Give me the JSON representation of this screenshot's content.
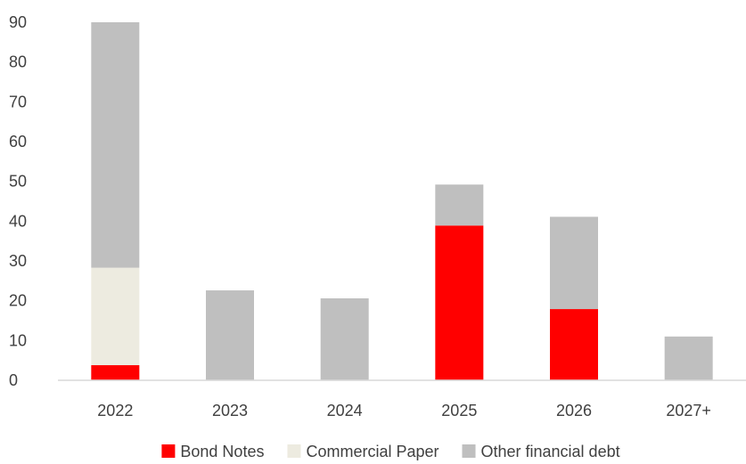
{
  "chart_data": {
    "type": "bar",
    "stacked": true,
    "categories": [
      "2022",
      "2023",
      "2024",
      "2025",
      "2026",
      "2027+"
    ],
    "series": [
      {
        "name": "Bond Notes",
        "color": "#ff0000",
        "values": [
          3.8,
          0,
          0,
          38.9,
          17.9,
          0
        ]
      },
      {
        "name": "Commercial Paper",
        "color": "#edebe0",
        "values": [
          24.5,
          0,
          0,
          0,
          0,
          0
        ]
      },
      {
        "name": "Other financial debt",
        "color": "#bfbfbf",
        "values": [
          61.7,
          22.6,
          20.6,
          10.3,
          23.2,
          11.0
        ]
      }
    ],
    "ylim": [
      0,
      90
    ],
    "yticks": [
      "0",
      "10",
      "20",
      "30",
      "40",
      "50",
      "60",
      "70",
      "80",
      "90"
    ],
    "grid": false,
    "legend_position": "bottom"
  }
}
